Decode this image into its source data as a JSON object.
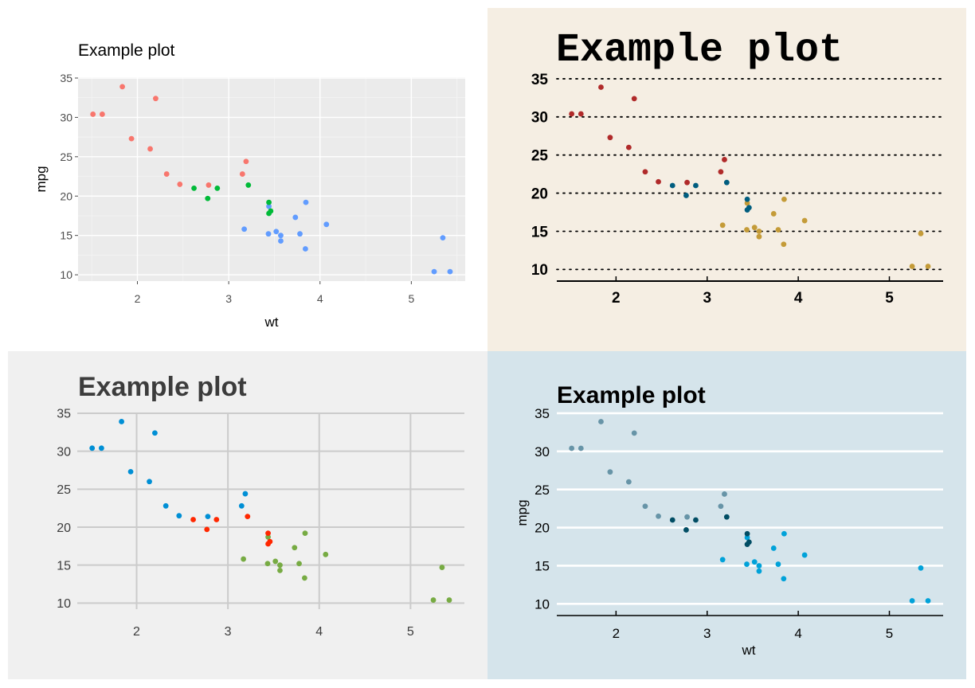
{
  "chart_data": {
    "type": "scatter",
    "x_values": [
      2.62,
      2.875,
      2.32,
      3.215,
      3.44,
      3.46,
      3.57,
      3.19,
      3.15,
      3.44,
      3.44,
      4.07,
      3.73,
      3.78,
      5.25,
      5.424,
      5.345,
      2.2,
      1.615,
      1.835,
      2.465,
      3.52,
      3.435,
      3.84,
      3.845,
      1.935,
      2.14,
      1.513,
      3.17,
      2.77,
      3.57,
      2.78
    ],
    "y_values": [
      21.0,
      21.0,
      22.8,
      21.4,
      18.7,
      18.1,
      14.3,
      24.4,
      22.8,
      19.2,
      17.8,
      16.4,
      17.3,
      15.2,
      10.4,
      10.4,
      14.7,
      32.4,
      30.4,
      33.9,
      21.5,
      15.5,
      15.2,
      13.3,
      19.2,
      27.3,
      26.0,
      30.4,
      15.8,
      19.7,
      15.0,
      21.4
    ],
    "groups": [
      1,
      1,
      0,
      1,
      2,
      1,
      2,
      0,
      0,
      1,
      1,
      2,
      2,
      2,
      2,
      2,
      2,
      0,
      0,
      0,
      0,
      2,
      2,
      2,
      2,
      0,
      0,
      0,
      2,
      1,
      2,
      0
    ],
    "x_ticks": [
      "2",
      "3",
      "4",
      "5"
    ],
    "y_ticks": [
      "10",
      "15",
      "20",
      "25",
      "30",
      "35"
    ],
    "xlim": [
      1.35,
      5.59
    ],
    "ylim": [
      9.2,
      35.1
    ],
    "panels": [
      {
        "title": "Example plot",
        "xlabel": "wt",
        "ylabel": "mpg",
        "background": "#ffffff",
        "plot_background": "#ebebeb",
        "colors": [
          "#f8766d",
          "#00ba38",
          "#619cff"
        ],
        "grid": "both"
      },
      {
        "title": "Example plot",
        "xlabel": "",
        "ylabel": "",
        "background": "#f5eee3",
        "plot_background": "#f5eee3",
        "colors": [
          "#b02a2a",
          "#005d7f",
          "#c49b38"
        ],
        "grid": "horizontal-dotted"
      },
      {
        "title": "Example plot",
        "xlabel": "",
        "ylabel": "",
        "background": "#f0f0f0",
        "plot_background": "#f0f0f0",
        "colors": [
          "#008fd5",
          "#ff2700",
          "#77ab43"
        ],
        "grid": "both"
      },
      {
        "title": "Example plot",
        "xlabel": "wt",
        "ylabel": "mpg",
        "background": "#d5e4eb",
        "plot_background": "#d5e4eb",
        "colors": [
          "#6794a7",
          "#014d64",
          "#01a2d9"
        ],
        "grid": "horizontal"
      }
    ]
  }
}
